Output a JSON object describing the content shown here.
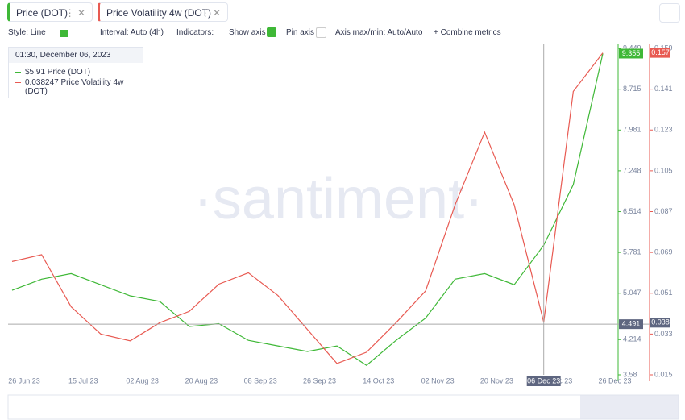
{
  "tabs": [
    "Price (DOT)",
    "Price Volatility 4w (DOT)"
  ],
  "toolbar": {
    "style": "Style: Line",
    "interval": "Interval: Auto (4h)",
    "indicators": "Indicators:",
    "show_axis": "Show axis",
    "pin_axis": "Pin axis",
    "axis_range": "Axis max/min: Auto/Auto",
    "combine": "+ Combine metrics"
  },
  "tooltip": {
    "time": "01:30, December 06, 2023",
    "rows": [
      "$5.91 Price (DOT)",
      "0.038247 Price Volatility 4w (DOT)"
    ]
  },
  "watermark": "·santiment·",
  "chart_data": {
    "type": "line",
    "categories": [
      "26 Jun 23",
      null,
      "15 Jul 23",
      null,
      "02 Aug 23",
      null,
      "20 Aug 23",
      null,
      "08 Sep 23",
      null,
      "26 Sep 23",
      null,
      "14 Oct 23",
      null,
      "02 Nov 23",
      null,
      "20 Nov 23",
      null,
      "06 Dec 23",
      null,
      "26 Dec 23"
    ],
    "series": [
      {
        "name": "Price (DOT)",
        "color": "#3fb837",
        "values": [
          5.1,
          5.3,
          5.4,
          5.2,
          5.0,
          4.9,
          4.45,
          4.5,
          4.2,
          4.1,
          4.0,
          4.1,
          3.75,
          4.2,
          4.6,
          5.3,
          5.4,
          5.2,
          5.91,
          7.0,
          9.355
        ]
      },
      {
        "name": "Price Volatility 4w (DOT)",
        "color": "#e85a52",
        "axis": "y2",
        "values": [
          0.065,
          0.068,
          0.045,
          0.033,
          0.03,
          0.038,
          0.043,
          0.055,
          0.06,
          0.05,
          0.035,
          0.02,
          0.025,
          0.038,
          0.052,
          0.09,
          0.122,
          0.09,
          0.038247,
          0.14,
          0.157
        ]
      }
    ],
    "ylim": [
      3.58,
      9.449
    ],
    "yticks": [
      3.58,
      4.214,
      5.047,
      5.781,
      6.514,
      7.248,
      7.981,
      8.715,
      9.449
    ],
    "y2lim": [
      0.015,
      0.159
    ],
    "y2ticks": [
      0.015,
      0.033,
      0.051,
      0.069,
      0.087,
      0.105,
      0.123,
      0.141,
      0.159
    ],
    "cursor": {
      "x": "06 Dec 23",
      "y": 4.491,
      "y2": 0.038
    },
    "last": {
      "y": 9.355,
      "y2": 0.157
    }
  }
}
